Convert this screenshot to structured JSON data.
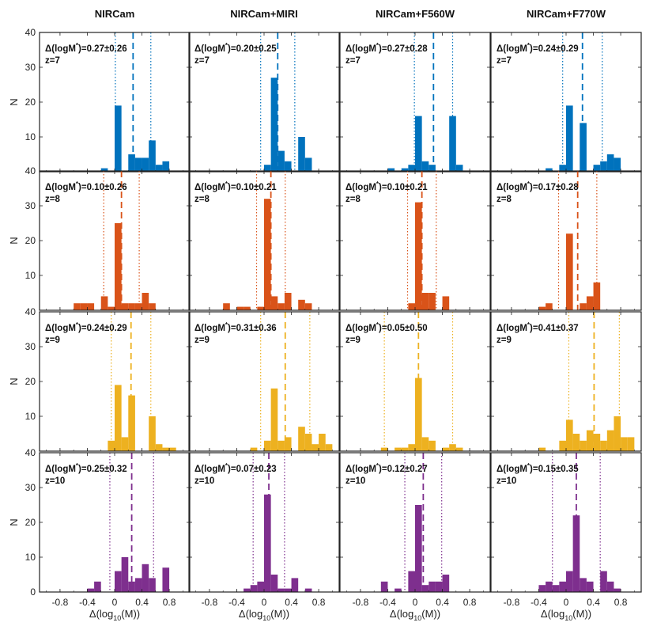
{
  "figure": {
    "ylabel": "N",
    "xlabel_prefix": "Δ(log",
    "xlabel_sub": "10",
    "xlabel_suffix": "(M))",
    "colors": {
      "z=7": "#0072BD",
      "z=8": "#D95319",
      "z=9": "#EDB120",
      "z=10": "#7E2F8E"
    }
  },
  "chart_data": {
    "type": "bar",
    "subtype": "histogram-grid",
    "columns": [
      "NIRCam",
      "NIRCam+MIRI",
      "NIRCam+F560W",
      "NIRCam+F770W"
    ],
    "rows": [
      "z=7",
      "z=8",
      "z=9",
      "z=10"
    ],
    "xlim": [
      -1.1,
      1.1
    ],
    "ylim": [
      0,
      40
    ],
    "bin_width": 0.1,
    "xticks": [
      -0.8,
      -0.4,
      0,
      0.4,
      0.8
    ],
    "xtick_labels": [
      "-0.8",
      "-0.4",
      "0",
      "0.4",
      "0.8"
    ],
    "yticks": [
      0,
      10,
      20,
      30,
      40
    ],
    "ytick_labels": [
      "0",
      "10",
      "20",
      "30",
      "40"
    ],
    "panels": [
      [
        {
          "label_prefix": "Δ(logM",
          "label_sup": "*",
          "label_suffix": ")=0.27±0.26",
          "mean": 0.27,
          "std": 0.26,
          "z": "z=7",
          "bin_starts": [
            -0.2,
            -0.1,
            0.0,
            0.1,
            0.2,
            0.3,
            0.4,
            0.5,
            0.6,
            0.7
          ],
          "counts": [
            1,
            0,
            19,
            0,
            5,
            4,
            4,
            9,
            2,
            3
          ]
        },
        {
          "label_prefix": "Δ(logM",
          "label_sup": "*",
          "label_suffix": ")=0.20±0.25",
          "mean": 0.2,
          "std": 0.25,
          "z": "z=7",
          "bin_starts": [
            0.0,
            0.1,
            0.2,
            0.3,
            0.4,
            0.5,
            0.6
          ],
          "counts": [
            2,
            27,
            6,
            3,
            0,
            10,
            4
          ]
        },
        {
          "label_prefix": "Δ(logM",
          "label_sup": "*",
          "label_suffix": ")=0.27±0.28",
          "mean": 0.27,
          "std": 0.28,
          "z": "z=7",
          "bin_starts": [
            -0.4,
            -0.3,
            -0.2,
            -0.1,
            0.0,
            0.1,
            0.2,
            0.3,
            0.4,
            0.5,
            0.6
          ],
          "counts": [
            1,
            0,
            1,
            2,
            16,
            3,
            2,
            0,
            0,
            16,
            2
          ]
        },
        {
          "label_prefix": "Δ(logM",
          "label_sup": "*",
          "label_suffix": ")=0.24±0.29",
          "mean": 0.24,
          "std": 0.29,
          "z": "z=7",
          "bin_starts": [
            -0.3,
            -0.2,
            -0.1,
            0.0,
            0.1,
            0.2,
            0.3,
            0.4,
            0.5,
            0.6,
            0.7
          ],
          "counts": [
            1,
            0,
            2,
            19,
            0,
            14,
            0,
            2,
            3,
            5,
            4
          ]
        }
      ],
      [
        {
          "label_prefix": "Δ(logM",
          "label_sup": "*",
          "label_suffix": ")=0.10±0.26",
          "mean": 0.1,
          "std": 0.26,
          "z": "z=8",
          "bin_starts": [
            -0.6,
            -0.5,
            -0.4,
            -0.3,
            -0.2,
            -0.1,
            0.0,
            0.1,
            0.2,
            0.3,
            0.4,
            0.5
          ],
          "counts": [
            2,
            2,
            2,
            0,
            4,
            1,
            25,
            2,
            2,
            2,
            5,
            2
          ]
        },
        {
          "label_prefix": "Δ(logM",
          "label_sup": "*",
          "label_suffix": ")=0.10±0.21",
          "mean": 0.1,
          "std": 0.21,
          "z": "z=8",
          "bin_starts": [
            -0.6,
            -0.5,
            -0.4,
            -0.3,
            -0.2,
            -0.1,
            0.0,
            0.1,
            0.2,
            0.3,
            0.4,
            0.5,
            0.6
          ],
          "counts": [
            2,
            0,
            1,
            1,
            0,
            1,
            32,
            4,
            2,
            5,
            0,
            3,
            2
          ]
        },
        {
          "label_prefix": "Δ(logM",
          "label_sup": "*",
          "label_suffix": ")=0.10±0.21",
          "mean": 0.1,
          "std": 0.21,
          "z": "z=8",
          "bin_starts": [
            -0.1,
            0.0,
            0.1,
            0.2,
            0.3,
            0.4
          ],
          "counts": [
            2,
            31,
            5,
            5,
            0,
            4
          ]
        },
        {
          "label_prefix": "Δ(logM",
          "label_sup": "*",
          "label_suffix": ")=0.17±0.28",
          "mean": 0.17,
          "std": 0.28,
          "z": "z=8",
          "bin_starts": [
            -0.4,
            -0.3,
            -0.2,
            -0.1,
            0.0,
            0.1,
            0.2,
            0.3,
            0.4,
            0.5
          ],
          "counts": [
            1,
            2,
            0,
            0,
            22,
            0,
            2,
            4,
            8,
            0
          ]
        }
      ],
      [
        {
          "label_prefix": "Δ(logM",
          "label_sup": "*",
          "label_suffix": ")=0.24±0.29",
          "mean": 0.24,
          "std": 0.29,
          "z": "z=9",
          "bin_starts": [
            -0.1,
            0.0,
            0.1,
            0.2,
            0.3,
            0.4,
            0.5,
            0.6,
            0.7,
            0.8
          ],
          "counts": [
            3,
            19,
            4,
            16,
            0,
            0,
            10,
            2,
            1,
            1
          ]
        },
        {
          "label_prefix": "Δ(logM",
          "label_sup": "*",
          "label_suffix": ")=0.31±0.36",
          "mean": 0.31,
          "std": 0.36,
          "z": "z=9",
          "bin_starts": [
            -0.2,
            -0.1,
            0.0,
            0.1,
            0.2,
            0.3,
            0.4,
            0.5,
            0.6,
            0.7,
            0.8,
            0.9
          ],
          "counts": [
            1,
            0,
            3,
            18,
            3,
            4,
            0,
            7,
            5,
            2,
            5,
            2
          ]
        },
        {
          "label_prefix": "Δ(logM",
          "label_sup": "*",
          "label_suffix": ")=0.05±0.50",
          "mean": 0.05,
          "std": 0.5,
          "z": "z=9",
          "bin_starts": [
            -0.5,
            -0.4,
            -0.3,
            -0.2,
            -0.1,
            0.0,
            0.1,
            0.2,
            0.3,
            0.4,
            0.5,
            0.6,
            0.7
          ],
          "counts": [
            1,
            0,
            1,
            1,
            2,
            21,
            4,
            3,
            0,
            1,
            2,
            1,
            0
          ]
        },
        {
          "label_prefix": "Δ(logM",
          "label_sup": "*",
          "label_suffix": ")=0.41±0.37",
          "mean": 0.41,
          "std": 0.37,
          "z": "z=9",
          "bin_starts": [
            -0.4,
            -0.3,
            -0.2,
            -0.1,
            0.0,
            0.1,
            0.2,
            0.3,
            0.4,
            0.5,
            0.6,
            0.7,
            0.8,
            0.9
          ],
          "counts": [
            1,
            0,
            0,
            3,
            9,
            5,
            3,
            6,
            5,
            3,
            6,
            10,
            4,
            4
          ]
        }
      ],
      [
        {
          "label_prefix": "Δ(logM",
          "label_sup": "*",
          "label_suffix": ")=0.25±0.32",
          "mean": 0.25,
          "std": 0.32,
          "z": "z=10",
          "bin_starts": [
            -0.4,
            -0.3,
            -0.2,
            -0.1,
            0.0,
            0.1,
            0.2,
            0.3,
            0.4,
            0.5,
            0.6,
            0.7
          ],
          "counts": [
            1,
            3,
            0,
            0,
            6,
            10,
            3,
            4,
            8,
            4,
            0,
            7
          ]
        },
        {
          "label_prefix": "Δ(logM",
          "label_sup": "*",
          "label_suffix": ")=0.07±0.23",
          "mean": 0.07,
          "std": 0.23,
          "z": "z=10",
          "bin_starts": [
            -0.3,
            -0.2,
            -0.1,
            0.0,
            0.1,
            0.2,
            0.3,
            0.4,
            0.5,
            0.6
          ],
          "counts": [
            1,
            2,
            3,
            28,
            5,
            1,
            1,
            4,
            0,
            1
          ]
        },
        {
          "label_prefix": "Δ(logM",
          "label_sup": "*",
          "label_suffix": ")=0.12±0.27",
          "mean": 0.12,
          "std": 0.27,
          "z": "z=10",
          "bin_starts": [
            -0.5,
            -0.4,
            -0.3,
            -0.2,
            -0.1,
            0.0,
            0.1,
            0.2,
            0.3,
            0.4
          ],
          "counts": [
            3,
            0,
            1,
            0,
            6,
            25,
            2,
            3,
            3,
            5
          ]
        },
        {
          "label_prefix": "Δ(logM",
          "label_sup": "*",
          "label_suffix": ")=0.15±0.35",
          "mean": 0.15,
          "std": 0.35,
          "z": "z=10",
          "bin_starts": [
            -0.4,
            -0.3,
            -0.2,
            -0.1,
            0.0,
            0.1,
            0.2,
            0.3,
            0.4,
            0.5,
            0.6,
            0.7
          ],
          "counts": [
            2,
            3,
            2,
            3,
            6,
            22,
            4,
            3,
            0,
            6,
            3,
            1
          ]
        }
      ]
    ]
  }
}
